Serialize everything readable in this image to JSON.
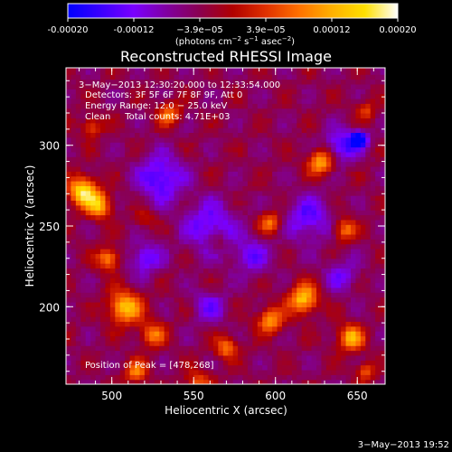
{
  "colorbar": {
    "ticks": [
      "-0.00020",
      "-0.00012",
      "−3.9e−05",
      "3.9e−05",
      "0.00012",
      "0.00020"
    ],
    "units_prefix": "(photons cm",
    "units_exp1": "−2",
    "units_mid": " s",
    "units_exp2": "−1",
    "units_mid2": " asec",
    "units_exp3": "−2",
    "units_suffix": ")",
    "colormap": [
      "#0000ff",
      "#3a00ff",
      "#7a00ff",
      "#8000a0",
      "#8a0050",
      "#b00000",
      "#e03000",
      "#ff7000",
      "#ffb000",
      "#ffe000",
      "#ffffff"
    ]
  },
  "plot": {
    "title": "Reconstructed RHESSI Image",
    "annotations": [
      "3−May−2013 12:30:20.000 to 12:33:54.000",
      "Detectors: 3F 5F 6F 7F 8F 9F, Att 0",
      "Energy Range: 12.0 − 25.0 keV",
      "Clean     Total counts: 4.71E+03"
    ],
    "peak_label": "Position of Peak = [478,268]",
    "footer_timestamp": "3−May−2013 19:52"
  },
  "chart_data": {
    "type": "heatmap",
    "title": "Reconstructed RHESSI Image",
    "xlabel": "Heliocentric X (arcsec)",
    "ylabel": "Heliocentric Y (arcsec)",
    "xlim": [
      472,
      667
    ],
    "ylim": [
      152,
      348
    ],
    "x_ticks": [
      500,
      550,
      600,
      650
    ],
    "y_ticks": [
      200,
      250,
      300
    ],
    "x_tick_labels": [
      "500",
      "550",
      "600",
      "650"
    ],
    "y_tick_labels": [
      "200",
      "250",
      "300"
    ],
    "color_range": [
      -0.0002,
      0.0002
    ],
    "peak_position": [
      478,
      268
    ],
    "grid": false,
    "hot_spots": [
      {
        "x": 482,
        "y": 272,
        "r": 9,
        "v": 0.0002
      },
      {
        "x": 492,
        "y": 263,
        "r": 8,
        "v": 0.00016
      },
      {
        "x": 498,
        "y": 230,
        "r": 7,
        "v": 0.00014
      },
      {
        "x": 508,
        "y": 200,
        "r": 10,
        "v": 0.00018
      },
      {
        "x": 525,
        "y": 183,
        "r": 8,
        "v": 0.00012
      },
      {
        "x": 553,
        "y": 153,
        "r": 8,
        "v": 0.0001
      },
      {
        "x": 570,
        "y": 175,
        "r": 7,
        "v": 0.00012
      },
      {
        "x": 597,
        "y": 192,
        "r": 8,
        "v": 0.00014
      },
      {
        "x": 617,
        "y": 205,
        "r": 9,
        "v": 0.00018
      },
      {
        "x": 646,
        "y": 181,
        "r": 8,
        "v": 0.00016
      },
      {
        "x": 628,
        "y": 290,
        "r": 8,
        "v": 0.00016
      },
      {
        "x": 642,
        "y": 248,
        "r": 7,
        "v": 0.00012
      },
      {
        "x": 597,
        "y": 252,
        "r": 7,
        "v": 0.00012
      },
      {
        "x": 535,
        "y": 320,
        "r": 7,
        "v": 0.00012
      },
      {
        "x": 488,
        "y": 312,
        "r": 6,
        "v": 0.0001
      },
      {
        "x": 565,
        "y": 240,
        "r": 6,
        "v": 6e-05
      },
      {
        "x": 520,
        "y": 255,
        "r": 6,
        "v": 6e-05
      },
      {
        "x": 655,
        "y": 322,
        "r": 6,
        "v": 8e-05
      },
      {
        "x": 655,
        "y": 160,
        "r": 6,
        "v": 0.0001
      },
      {
        "x": 515,
        "y": 160,
        "r": 7,
        "v": 0.00012
      }
    ],
    "cold_spots": [
      {
        "x": 530,
        "y": 280,
        "r": 14,
        "v": -0.00012
      },
      {
        "x": 560,
        "y": 250,
        "r": 16,
        "v": -0.0001
      },
      {
        "x": 585,
        "y": 232,
        "r": 12,
        "v": -8e-05
      },
      {
        "x": 620,
        "y": 255,
        "r": 14,
        "v": -0.0001
      },
      {
        "x": 640,
        "y": 300,
        "r": 10,
        "v": -0.00012
      },
      {
        "x": 651,
        "y": 304,
        "r": 5,
        "v": -0.0002
      },
      {
        "x": 520,
        "y": 230,
        "r": 10,
        "v": -0.0001
      },
      {
        "x": 560,
        "y": 200,
        "r": 10,
        "v": -8e-05
      },
      {
        "x": 640,
        "y": 220,
        "r": 10,
        "v": -8e-05
      }
    ]
  }
}
